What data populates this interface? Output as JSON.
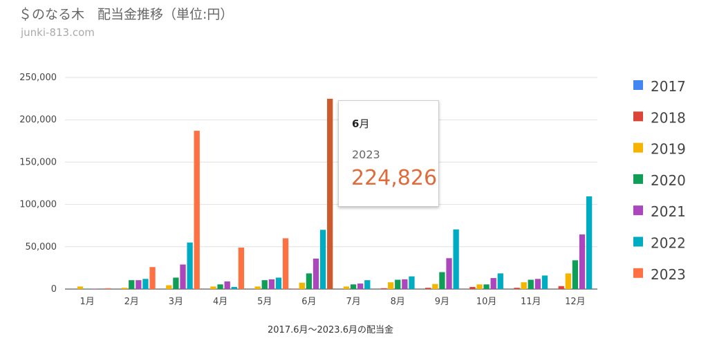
{
  "header": {
    "title": "＄のなる木　配当金推移（単位:円）",
    "subtitle": "junki-813.com"
  },
  "tooltip": {
    "category": "6",
    "category_suffix": "月",
    "series": "2023",
    "value": "224,826"
  },
  "chart_data": {
    "type": "bar",
    "title": "＄のなる木　配当金推移（単位:円）",
    "xlabel": "2017.6月～2023.6月の配当金",
    "ylabel": "",
    "ylim": [
      0,
      250000
    ],
    "yticks": [
      0,
      50000,
      100000,
      150000,
      200000,
      250000
    ],
    "ytick_labels": [
      "0",
      "50,000",
      "100,000",
      "150,000",
      "200,000",
      "250,000"
    ],
    "categories": [
      "1月",
      "2月",
      "3月",
      "4月",
      "5月",
      "6月",
      "7月",
      "8月",
      "9月",
      "10月",
      "11月",
      "12月"
    ],
    "grid": true,
    "legend_position": "right",
    "highlight": {
      "category": "6月",
      "series": "2023"
    },
    "series": [
      {
        "name": "2017",
        "color": "#4285f4",
        "values": [
          0,
          0,
          0,
          0,
          0,
          0,
          0,
          0,
          0,
          0,
          0,
          0
        ]
      },
      {
        "name": "2018",
        "color": "#db4437",
        "values": [
          0,
          0,
          0,
          0,
          0,
          500,
          0,
          1000,
          1500,
          2500,
          1500,
          3500
        ]
      },
      {
        "name": "2019",
        "color": "#f4b400",
        "values": [
          3000,
          1500,
          4500,
          3000,
          3000,
          7500,
          3000,
          8000,
          6000,
          5500,
          8000,
          18500
        ]
      },
      {
        "name": "2020",
        "color": "#0f9d58",
        "values": [
          500,
          10500,
          13500,
          5500,
          10500,
          18500,
          5500,
          11000,
          20000,
          5500,
          11000,
          34000
        ]
      },
      {
        "name": "2021",
        "color": "#ab47bc",
        "values": [
          500,
          10500,
          29000,
          9000,
          11500,
          36000,
          6500,
          11500,
          36500,
          13000,
          12000,
          64500
        ]
      },
      {
        "name": "2022",
        "color": "#00acc1",
        "values": [
          0,
          12000,
          55000,
          2500,
          13500,
          70000,
          10500,
          15000,
          70500,
          18500,
          16000,
          109500
        ]
      },
      {
        "name": "2023",
        "color": "#ff7043",
        "values": [
          1000,
          26000,
          187000,
          49000,
          60000,
          224826,
          0,
          0,
          0,
          0,
          0,
          0
        ]
      }
    ]
  }
}
